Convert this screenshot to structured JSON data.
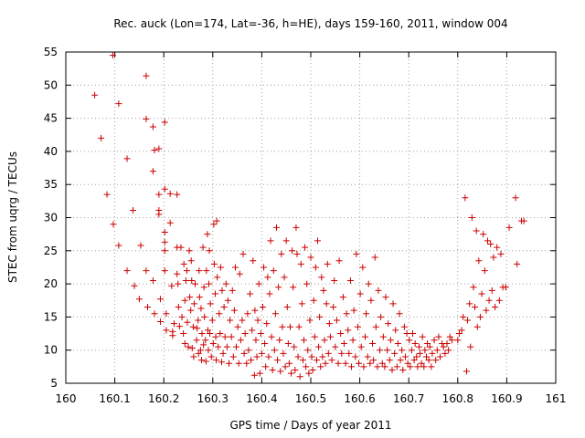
{
  "chart_data": {
    "type": "scatter",
    "title": "Rec. auck (Lon=174, Lat=-36, h=HE), days 159-160, 2011, window 004",
    "xlabel": "GPS time / Days of year 2011",
    "ylabel": "STEC from uqrg / TECUs",
    "xlim": [
      160,
      161
    ],
    "ylim": [
      5,
      55
    ],
    "xticks": [
      "160",
      "160.1",
      "160.2",
      "160.3",
      "160.4",
      "160.5",
      "160.6",
      "160.7",
      "160.8",
      "160.9",
      "161"
    ],
    "yticks": [
      "5",
      "10",
      "15",
      "20",
      "25",
      "30",
      "35",
      "40",
      "45",
      "50",
      "55"
    ],
    "grid": true,
    "marker": "+",
    "color": "#cc0000",
    "points": [
      [
        160.059,
        48.5
      ],
      [
        160.072,
        42.0
      ],
      [
        160.084,
        33.5
      ],
      [
        160.096,
        54.5
      ],
      [
        160.097,
        29.0
      ],
      [
        160.108,
        25.8
      ],
      [
        160.108,
        47.2
      ],
      [
        160.125,
        38.9
      ],
      [
        160.125,
        22.0
      ],
      [
        160.137,
        31.1
      ],
      [
        160.14,
        19.7
      ],
      [
        160.15,
        17.7
      ],
      [
        160.153,
        25.8
      ],
      [
        160.164,
        51.4
      ],
      [
        160.164,
        44.9
      ],
      [
        160.164,
        22.0
      ],
      [
        160.167,
        16.5
      ],
      [
        160.178,
        43.7
      ],
      [
        160.178,
        37.0
      ],
      [
        160.178,
        20.5
      ],
      [
        160.181,
        15.5
      ],
      [
        160.181,
        40.2
      ],
      [
        160.19,
        31.1
      ],
      [
        160.19,
        33.5
      ],
      [
        160.19,
        30.5
      ],
      [
        160.19,
        40.4
      ],
      [
        160.193,
        17.7
      ],
      [
        160.193,
        14.3
      ],
      [
        160.202,
        44.4
      ],
      [
        160.202,
        34.3
      ],
      [
        160.202,
        27.8
      ],
      [
        160.202,
        26.3
      ],
      [
        160.202,
        25.0
      ],
      [
        160.202,
        22.0
      ],
      [
        160.205,
        13.0
      ],
      [
        160.205,
        15.5
      ],
      [
        160.213,
        33.6
      ],
      [
        160.213,
        29.2
      ],
      [
        160.216,
        19.7
      ],
      [
        160.218,
        12.8
      ],
      [
        160.218,
        12.2
      ],
      [
        160.221,
        14.0
      ],
      [
        160.227,
        33.5
      ],
      [
        160.227,
        25.5
      ],
      [
        160.227,
        21.5
      ],
      [
        160.229,
        20.0
      ],
      [
        160.23,
        16.5
      ],
      [
        160.232,
        13.6
      ],
      [
        160.235,
        25.5
      ],
      [
        160.237,
        15.0
      ],
      [
        160.24,
        12.5
      ],
      [
        160.241,
        23.0
      ],
      [
        160.243,
        11.0
      ],
      [
        160.243,
        17.5
      ],
      [
        160.245,
        20.5
      ],
      [
        160.247,
        22.0
      ],
      [
        160.248,
        14.2
      ],
      [
        160.25,
        10.5
      ],
      [
        160.252,
        25.0
      ],
      [
        160.253,
        18.0
      ],
      [
        160.255,
        16.0
      ],
      [
        160.256,
        23.5
      ],
      [
        160.257,
        20.5
      ],
      [
        160.258,
        10.3
      ],
      [
        160.26,
        13.5
      ],
      [
        160.261,
        9.0
      ],
      [
        160.262,
        17.0
      ],
      [
        160.264,
        20.0
      ],
      [
        160.267,
        11.5
      ],
      [
        160.268,
        13.3
      ],
      [
        160.27,
        14.5
      ],
      [
        160.271,
        9.5
      ],
      [
        160.272,
        22.0
      ],
      [
        160.273,
        18.0
      ],
      [
        160.275,
        10.0
      ],
      [
        160.276,
        16.3
      ],
      [
        160.277,
        8.5
      ],
      [
        160.278,
        12.5
      ],
      [
        160.28,
        25.5
      ],
      [
        160.281,
        10.8
      ],
      [
        160.282,
        19.5
      ],
      [
        160.283,
        15.0
      ],
      [
        160.285,
        11.5
      ],
      [
        160.286,
        8.3
      ],
      [
        160.287,
        22.0
      ],
      [
        160.289,
        27.5
      ],
      [
        160.29,
        13.0
      ],
      [
        160.291,
        10.0
      ],
      [
        160.292,
        20.0
      ],
      [
        160.293,
        25.0
      ],
      [
        160.294,
        12.5
      ],
      [
        160.295,
        17.0
      ],
      [
        160.297,
        9.0
      ],
      [
        160.299,
        14.5
      ],
      [
        160.301,
        11.0
      ],
      [
        160.302,
        29.0
      ],
      [
        160.303,
        23.0
      ],
      [
        160.305,
        18.5
      ],
      [
        160.306,
        12.0
      ],
      [
        160.307,
        8.5
      ],
      [
        160.308,
        29.5
      ],
      [
        160.309,
        21.0
      ],
      [
        160.311,
        10.5
      ],
      [
        160.313,
        15.5
      ],
      [
        160.315,
        12.5
      ],
      [
        160.316,
        22.5
      ],
      [
        160.318,
        8.2
      ],
      [
        160.319,
        19.0
      ],
      [
        160.321,
        9.5
      ],
      [
        160.323,
        16.5
      ],
      [
        160.325,
        12.0
      ],
      [
        160.327,
        20.0
      ],
      [
        160.329,
        10.5
      ],
      [
        160.331,
        17.5
      ],
      [
        160.333,
        8.0
      ],
      [
        160.335,
        14.5
      ],
      [
        160.338,
        12.0
      ],
      [
        160.34,
        19.0
      ],
      [
        160.342,
        9.0
      ],
      [
        160.344,
        16.0
      ],
      [
        160.346,
        22.5
      ],
      [
        160.348,
        10.5
      ],
      [
        160.351,
        13.5
      ],
      [
        160.353,
        8.0
      ],
      [
        160.355,
        21.5
      ],
      [
        160.357,
        11.5
      ],
      [
        160.36,
        14.5
      ],
      [
        160.362,
        24.5
      ],
      [
        160.364,
        9.5
      ],
      [
        160.366,
        12.5
      ],
      [
        160.369,
        8.0
      ],
      [
        160.371,
        15.5
      ],
      [
        160.373,
        10.0
      ],
      [
        160.376,
        18.5
      ],
      [
        160.378,
        8.5
      ],
      [
        160.38,
        13.0
      ],
      [
        160.382,
        23.5
      ],
      [
        160.385,
        6.2
      ],
      [
        160.386,
        16.0
      ],
      [
        160.388,
        11.5
      ],
      [
        160.39,
        9.0
      ],
      [
        160.392,
        14.5
      ],
      [
        160.394,
        20.0
      ],
      [
        160.396,
        6.5
      ],
      [
        160.398,
        12.5
      ],
      [
        160.4,
        9.5
      ],
      [
        160.402,
        16.5
      ],
      [
        160.404,
        22.5
      ],
      [
        160.406,
        11.0
      ],
      [
        160.408,
        7.5
      ],
      [
        160.41,
        14.0
      ],
      [
        160.412,
        21.0
      ],
      [
        160.414,
        9.0
      ],
      [
        160.416,
        18.5
      ],
      [
        160.418,
        26.5
      ],
      [
        160.42,
        12.0
      ],
      [
        160.422,
        7.0
      ],
      [
        160.424,
        22.0
      ],
      [
        160.426,
        10.0
      ],
      [
        160.428,
        15.5
      ],
      [
        160.43,
        28.5
      ],
      [
        160.432,
        8.5
      ],
      [
        160.434,
        19.5
      ],
      [
        160.436,
        11.5
      ],
      [
        160.438,
        6.8
      ],
      [
        160.44,
        24.5
      ],
      [
        160.442,
        13.5
      ],
      [
        160.444,
        9.5
      ],
      [
        160.446,
        21.0
      ],
      [
        160.448,
        7.5
      ],
      [
        160.45,
        26.5
      ],
      [
        160.452,
        16.5
      ],
      [
        160.454,
        11.0
      ],
      [
        160.456,
        8.0
      ],
      [
        160.458,
        13.5
      ],
      [
        160.46,
        6.5
      ],
      [
        160.462,
        25.0
      ],
      [
        160.464,
        19.5
      ],
      [
        160.466,
        10.5
      ],
      [
        160.468,
        7.0
      ],
      [
        160.47,
        28.5
      ],
      [
        160.472,
        24.5
      ],
      [
        160.474,
        9.0
      ],
      [
        160.476,
        13.5
      ],
      [
        160.478,
        6.0
      ],
      [
        160.48,
        23.0
      ],
      [
        160.482,
        17.0
      ],
      [
        160.484,
        8.5
      ],
      [
        160.486,
        11.5
      ],
      [
        160.488,
        25.5
      ],
      [
        160.49,
        7.5
      ],
      [
        160.492,
        20.0
      ],
      [
        160.494,
        10.0
      ],
      [
        160.496,
        6.5
      ],
      [
        160.498,
        14.5
      ],
      [
        160.5,
        24.0
      ],
      [
        160.502,
        9.0
      ],
      [
        160.504,
        7.0
      ],
      [
        160.506,
        17.5
      ],
      [
        160.508,
        12.0
      ],
      [
        160.51,
        22.5
      ],
      [
        160.512,
        8.5
      ],
      [
        160.514,
        26.5
      ],
      [
        160.516,
        10.5
      ],
      [
        160.518,
        15.0
      ],
      [
        160.52,
        7.5
      ],
      [
        160.522,
        21.0
      ],
      [
        160.524,
        9.0
      ],
      [
        160.526,
        19.0
      ],
      [
        160.528,
        11.5
      ],
      [
        160.53,
        8.0
      ],
      [
        160.532,
        17.0
      ],
      [
        160.534,
        23.0
      ],
      [
        160.536,
        9.5
      ],
      [
        160.538,
        14.0
      ],
      [
        160.54,
        12.0
      ],
      [
        160.543,
        8.5
      ],
      [
        160.546,
        16.5
      ],
      [
        160.548,
        20.5
      ],
      [
        160.55,
        10.5
      ],
      [
        160.553,
        14.5
      ],
      [
        160.556,
        8.0
      ],
      [
        160.558,
        23.5
      ],
      [
        160.561,
        12.5
      ],
      [
        160.563,
        9.5
      ],
      [
        160.566,
        18.0
      ],
      [
        160.568,
        11.0
      ],
      [
        160.571,
        8.0
      ],
      [
        160.573,
        15.5
      ],
      [
        160.576,
        13.0
      ],
      [
        160.578,
        9.5
      ],
      [
        160.581,
        20.5
      ],
      [
        160.583,
        7.5
      ],
      [
        160.586,
        11.5
      ],
      [
        160.588,
        16.0
      ],
      [
        160.591,
        9.0
      ],
      [
        160.593,
        24.5
      ],
      [
        160.596,
        13.5
      ],
      [
        160.598,
        8.0
      ],
      [
        160.601,
        18.5
      ],
      [
        160.603,
        10.5
      ],
      [
        160.606,
        22.5
      ],
      [
        160.608,
        7.5
      ],
      [
        160.611,
        12.0
      ],
      [
        160.613,
        15.5
      ],
      [
        160.616,
        9.0
      ],
      [
        160.618,
        20.0
      ],
      [
        160.621,
        8.0
      ],
      [
        160.623,
        17.5
      ],
      [
        160.626,
        11.0
      ],
      [
        160.628,
        8.5
      ],
      [
        160.631,
        24.0
      ],
      [
        160.633,
        13.5
      ],
      [
        160.636,
        7.5
      ],
      [
        160.638,
        19.0
      ],
      [
        160.641,
        10.0
      ],
      [
        160.643,
        15.0
      ],
      [
        160.646,
        8.0
      ],
      [
        160.648,
        12.0
      ],
      [
        160.651,
        7.5
      ],
      [
        160.653,
        18.0
      ],
      [
        160.656,
        10.0
      ],
      [
        160.658,
        14.0
      ],
      [
        160.661,
        8.5
      ],
      [
        160.663,
        11.5
      ],
      [
        160.666,
        7.0
      ],
      [
        160.668,
        17.0
      ],
      [
        160.671,
        9.5
      ],
      [
        160.673,
        13.0
      ],
      [
        160.676,
        7.5
      ],
      [
        160.678,
        11.0
      ],
      [
        160.681,
        15.5
      ],
      [
        160.683,
        8.5
      ],
      [
        160.686,
        10.0
      ],
      [
        160.688,
        7.0
      ],
      [
        160.691,
        13.5
      ],
      [
        160.693,
        9.0
      ],
      [
        160.696,
        12.5
      ],
      [
        160.698,
        8.0
      ],
      [
        160.701,
        11.5
      ],
      [
        160.703,
        7.5
      ],
      [
        160.706,
        10.0
      ],
      [
        160.708,
        12.5
      ],
      [
        160.711,
        8.5
      ],
      [
        160.713,
        11.0
      ],
      [
        160.716,
        9.0
      ],
      [
        160.718,
        7.5
      ],
      [
        160.721,
        10.5
      ],
      [
        160.723,
        9.5
      ],
      [
        160.726,
        8.0
      ],
      [
        160.728,
        12.0
      ],
      [
        160.731,
        7.5
      ],
      [
        160.733,
        10.0
      ],
      [
        160.736,
        9.0
      ],
      [
        160.738,
        11.0
      ],
      [
        160.741,
        8.5
      ],
      [
        160.743,
        10.5
      ],
      [
        160.746,
        7.5
      ],
      [
        160.748,
        9.5
      ],
      [
        160.752,
        11.5
      ],
      [
        160.755,
        8.5
      ],
      [
        160.758,
        10.0
      ],
      [
        160.761,
        12.0
      ],
      [
        160.764,
        9.0
      ],
      [
        160.768,
        11.0
      ],
      [
        160.771,
        10.5
      ],
      [
        160.774,
        9.5
      ],
      [
        160.778,
        11.0
      ],
      [
        160.781,
        10.0
      ],
      [
        160.784,
        12.0
      ],
      [
        160.788,
        11.5
      ],
      [
        160.8,
        11.5
      ],
      [
        160.803,
        12.5
      ],
      [
        160.808,
        13.0
      ],
      [
        160.811,
        15.0
      ],
      [
        160.815,
        33.0
      ],
      [
        160.818,
        6.8
      ],
      [
        160.82,
        14.5
      ],
      [
        160.824,
        17.0
      ],
      [
        160.826,
        10.5
      ],
      [
        160.829,
        30.0
      ],
      [
        160.832,
        19.5
      ],
      [
        160.835,
        16.5
      ],
      [
        160.838,
        28.0
      ],
      [
        160.84,
        13.5
      ],
      [
        160.843,
        23.5
      ],
      [
        160.846,
        15.0
      ],
      [
        160.849,
        18.5
      ],
      [
        160.852,
        27.5
      ],
      [
        160.855,
        22.0
      ],
      [
        160.858,
        16.0
      ],
      [
        160.861,
        26.5
      ],
      [
        160.864,
        17.5
      ],
      [
        160.867,
        26.0
      ],
      [
        160.87,
        19.0
      ],
      [
        160.873,
        24.0
      ],
      [
        160.876,
        16.5
      ],
      [
        160.88,
        25.5
      ],
      [
        160.885,
        17.5
      ],
      [
        160.888,
        24.5
      ],
      [
        160.892,
        19.5
      ],
      [
        160.898,
        19.5
      ],
      [
        160.905,
        28.5
      ],
      [
        160.918,
        33.0
      ],
      [
        160.921,
        23.0
      ],
      [
        160.935,
        29.5
      ],
      [
        160.93,
        29.5
      ]
    ]
  }
}
